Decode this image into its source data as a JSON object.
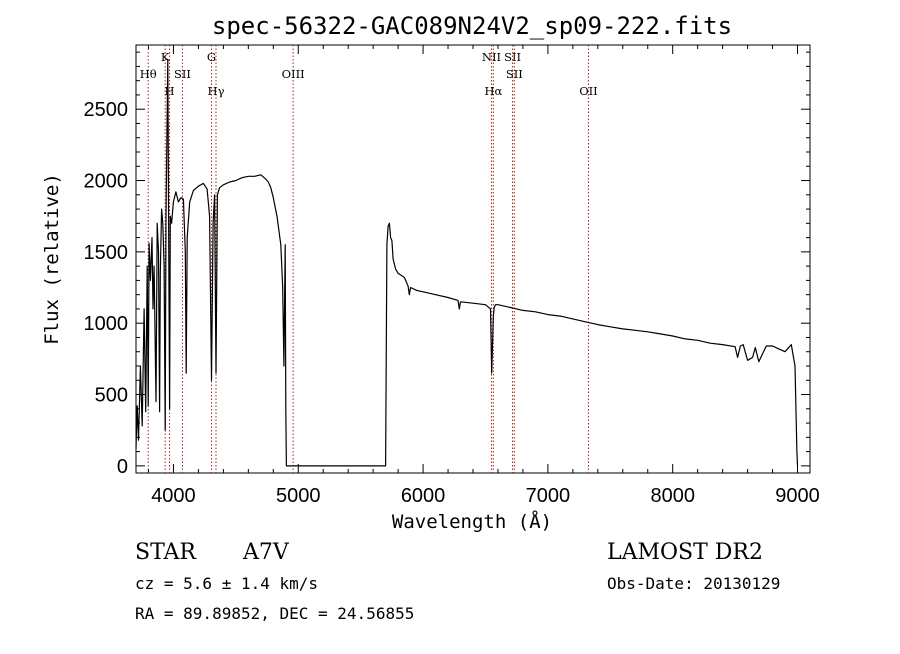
{
  "chart_data": {
    "type": "line",
    "title": "spec-56322-GAC089N24V2_sp09-222.fits",
    "xlabel": "Wavelength (Å)",
    "ylabel": "Flux (relative)",
    "xlim": [
      3700,
      9100
    ],
    "ylim": [
      -50,
      2950
    ],
    "x_ticks": [
      4000,
      5000,
      6000,
      7000,
      8000,
      9000
    ],
    "y_ticks": [
      0,
      500,
      1000,
      1500,
      2000,
      2500
    ],
    "grid": false,
    "line_color": "#000000",
    "marker_color": "#a0281e",
    "spectral_lines": [
      {
        "label": "Hθ",
        "wavelength": 3798,
        "row": 1
      },
      {
        "label": "K",
        "wavelength": 3934,
        "row": 0
      },
      {
        "label": "H",
        "wavelength": 3969,
        "row": 2
      },
      {
        "label": "SII",
        "wavelength": 4072,
        "row": 1
      },
      {
        "label": "G",
        "wavelength": 4305,
        "row": 0
      },
      {
        "label": "Hγ",
        "wavelength": 4341,
        "row": 2
      },
      {
        "label": "OIII",
        "wavelength": 4959,
        "row": 1
      },
      {
        "label": "NII",
        "wavelength": 6548,
        "row": 0
      },
      {
        "label": "Hα",
        "wavelength": 6563,
        "row": 2
      },
      {
        "label": "SII",
        "wavelength": 6717,
        "row": 0
      },
      {
        "label": "SII",
        "wavelength": 6731,
        "row": 1
      },
      {
        "label": "OII",
        "wavelength": 7325,
        "row": 2
      }
    ],
    "series": [
      {
        "x": [
          3700,
          3710,
          3720,
          3735,
          3750,
          3765,
          3778,
          3790,
          3798,
          3805,
          3815,
          3828,
          3836,
          3845,
          3860,
          3870,
          3880,
          3889,
          3895,
          3905,
          3915,
          3925,
          3934,
          3940,
          3955,
          3962,
          3969,
          3975,
          3985,
          4000,
          4020,
          4040,
          4060,
          4080,
          4095,
          4102,
          4110,
          4130,
          4160,
          4200,
          4240,
          4270,
          4290,
          4305,
          4318,
          4330,
          4341,
          4352,
          4370,
          4400,
          4450,
          4500,
          4550,
          4600,
          4650,
          4700,
          4740,
          4760,
          4780,
          4800,
          4830,
          4860,
          4875,
          4885,
          4895,
          4900,
          4905,
          5000,
          5500,
          5700,
          5710,
          5720,
          5730,
          5740,
          5750,
          5760,
          5780,
          5800,
          5850,
          5880,
          5890,
          5900,
          5950,
          6000,
          6100,
          6200,
          6280,
          6290,
          6300,
          6400,
          6500,
          6540,
          6550,
          6563,
          6570,
          6580,
          6600,
          6700,
          6800,
          6900,
          7000,
          7100,
          7200,
          7300,
          7400,
          7500,
          7600,
          7700,
          7800,
          7900,
          8000,
          8100,
          8200,
          8300,
          8400,
          8500,
          8520,
          8542,
          8565,
          8600,
          8640,
          8662,
          8690,
          8750,
          8800,
          8850,
          8900,
          8950,
          8980,
          8995,
          9000
        ],
        "y": [
          120,
          420,
          180,
          700,
          280,
          1100,
          380,
          1400,
          420,
          1560,
          1300,
          1600,
          1100,
          1400,
          450,
          1700,
          1500,
          380,
          1350,
          1800,
          1700,
          1400,
          250,
          1750,
          2850,
          1600,
          400,
          1750,
          1700,
          1850,
          1920,
          1850,
          1880,
          1870,
          1500,
          650,
          1600,
          1850,
          1930,
          1960,
          1980,
          1940,
          1750,
          600,
          1700,
          1900,
          650,
          1900,
          1950,
          1970,
          1990,
          2000,
          2020,
          2030,
          2030,
          2040,
          2010,
          1990,
          1950,
          1880,
          1750,
          1550,
          1250,
          700,
          1550,
          400,
          0,
          0,
          0,
          0,
          1550,
          1680,
          1700,
          1600,
          1580,
          1450,
          1380,
          1350,
          1320,
          1260,
          1200,
          1250,
          1230,
          1220,
          1200,
          1180,
          1160,
          1100,
          1150,
          1140,
          1130,
          1100,
          650,
          1050,
          1110,
          1130,
          1130,
          1110,
          1090,
          1080,
          1060,
          1050,
          1030,
          1010,
          990,
          975,
          960,
          950,
          940,
          925,
          910,
          890,
          880,
          860,
          850,
          835,
          760,
          840,
          850,
          740,
          760,
          830,
          730,
          840,
          840,
          820,
          800,
          850,
          700,
          100,
          0
        ]
      }
    ]
  },
  "info": {
    "object_class": "STAR",
    "subclass": "A7V",
    "survey": "LAMOST DR2",
    "cz": "cz = 5.6 ± 1.4 km/s",
    "obs_date": "Obs-Date: 20130129",
    "coords": "RA =  89.89852, DEC =  24.56855"
  }
}
